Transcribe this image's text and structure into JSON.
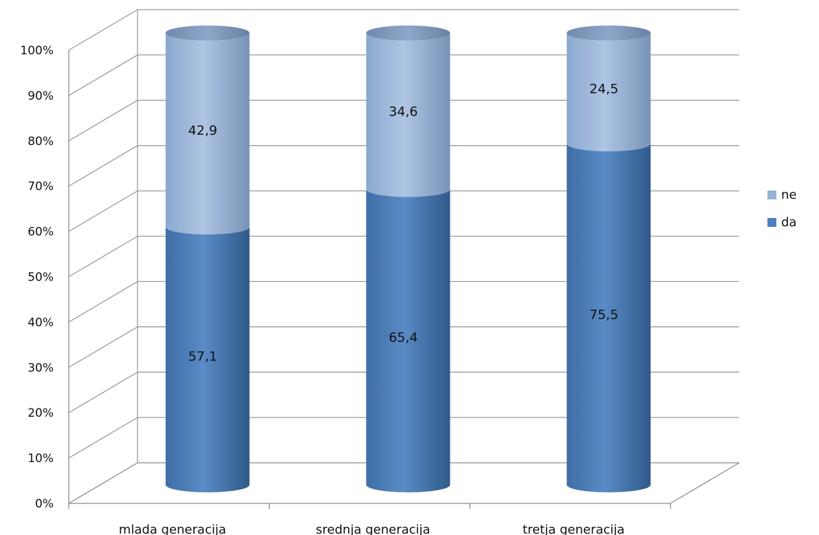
{
  "chart_data": {
    "type": "bar",
    "stacked": true,
    "percent": true,
    "style": "3d-cylinder",
    "categories": [
      "mlada generacija",
      "srednja generacija",
      "tretja generacija"
    ],
    "series": [
      {
        "name": "da",
        "values": [
          57.1,
          65.4,
          75.5
        ],
        "labels": [
          "57,1",
          "65,4",
          "75,5"
        ],
        "color": "#4f81bd"
      },
      {
        "name": "ne",
        "values": [
          42.9,
          34.6,
          24.5
        ],
        "labels": [
          "42,9",
          "34,6",
          "24,5"
        ],
        "color": "#95b3d7"
      }
    ],
    "ylim": [
      0,
      100
    ],
    "yticks": [
      "0%",
      "10%",
      "20%",
      "30%",
      "40%",
      "50%",
      "60%",
      "70%",
      "80%",
      "90%",
      "100%"
    ],
    "grid": true,
    "legend": {
      "position": "right",
      "entries": [
        {
          "name": "ne",
          "color": "#95b3d7"
        },
        {
          "name": "da",
          "color": "#4f81bd"
        }
      ]
    },
    "title": "",
    "xlabel": "",
    "ylabel": ""
  }
}
